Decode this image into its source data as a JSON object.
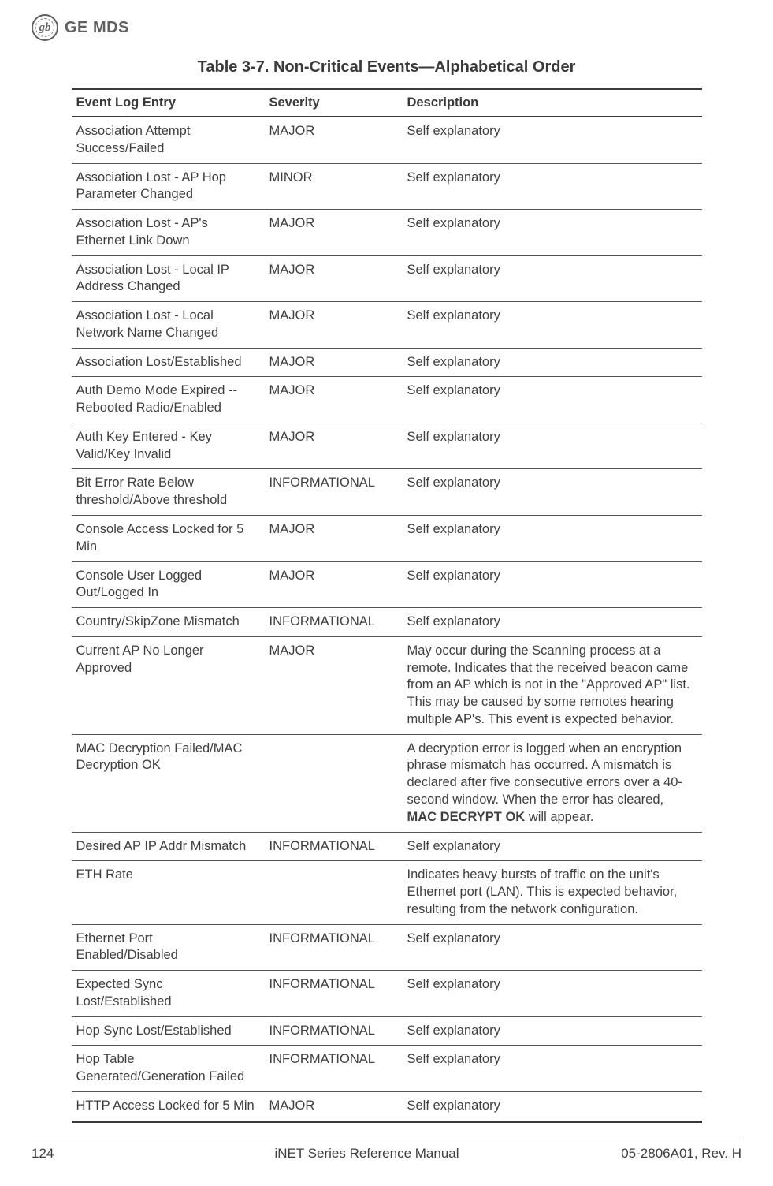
{
  "brand": {
    "logo_text": "gb",
    "name": "GE MDS"
  },
  "table": {
    "title": "Table 3-7. Non-Critical Events—Alphabetical Order",
    "columns": [
      "Event Log Entry",
      "Severity",
      "Description"
    ],
    "rows": [
      {
        "entry": "Association Attempt Success/Failed",
        "severity": "MAJOR",
        "desc": "Self explanatory"
      },
      {
        "entry": "Association Lost - AP Hop Parameter Changed",
        "severity": "MINOR",
        "desc": "Self explanatory"
      },
      {
        "entry": "Association Lost - AP's Ethernet Link Down",
        "severity": "MAJOR",
        "desc": "Self explanatory"
      },
      {
        "entry": "Association Lost - Local IP Address Changed",
        "severity": "MAJOR",
        "desc": "Self explanatory"
      },
      {
        "entry": "Association Lost - Local Network Name Changed",
        "severity": "MAJOR",
        "desc": "Self explanatory"
      },
      {
        "entry": "Association Lost/Established",
        "severity": "MAJOR",
        "desc": "Self explanatory"
      },
      {
        "entry": "Auth Demo Mode Expired -- Rebooted Radio/Enabled",
        "severity": "MAJOR",
        "desc": "Self explanatory"
      },
      {
        "entry": "Auth Key Entered - Key Valid/Key Invalid",
        "severity": "MAJOR",
        "desc": "Self explanatory"
      },
      {
        "entry": "Bit Error Rate Below threshold/Above threshold",
        "severity": "INFORMATIONAL",
        "desc": "Self explanatory"
      },
      {
        "entry": "Console Access Locked for 5 Min",
        "severity": "MAJOR",
        "desc": "Self explanatory"
      },
      {
        "entry": "Console User Logged Out/Logged In",
        "severity": "MAJOR",
        "desc": "Self explanatory"
      },
      {
        "entry": "Country/SkipZone Mismatch",
        "severity": "INFORMATIONAL",
        "desc": "Self explanatory"
      },
      {
        "entry": "Current AP No Longer Approved",
        "severity": "MAJOR",
        "desc": "May occur during the Scanning process at a remote. Indicates that the received beacon came from an AP which is not in the \"Approved AP\" list. This may be caused by some remotes hearing multiple AP's. This event is expected behavior."
      },
      {
        "entry": "MAC Decryption Failed/MAC Decryption OK",
        "severity": "",
        "desc_html": "A decryption error is logged when an encryption phrase mismatch has occurred. A mismatch is declared after five consecutive errors over a 40-second window. When the error has cleared, <strong>MAC DECRYPT OK</strong> will appear."
      },
      {
        "entry": "Desired AP IP Addr Mismatch",
        "severity": "INFORMATIONAL",
        "desc": "Self explanatory"
      },
      {
        "entry": "ETH Rate",
        "severity": "",
        "desc": "Indicates heavy bursts of traffic on the unit's Ethernet port (LAN). This is expected behavior, resulting from the network configuration."
      },
      {
        "entry": "Ethernet Port Enabled/Disabled",
        "severity": "INFORMATIONAL",
        "desc": "Self explanatory"
      },
      {
        "entry": "Expected Sync Lost/Established",
        "severity": "INFORMATIONAL",
        "desc": "Self explanatory"
      },
      {
        "entry": "Hop Sync Lost/Established",
        "severity": "INFORMATIONAL",
        "desc": "Self explanatory"
      },
      {
        "entry": "Hop Table Generated/Generation Failed",
        "severity": "INFORMATIONAL",
        "desc": "Self explanatory"
      },
      {
        "entry": "HTTP Access Locked for 5 Min",
        "severity": "MAJOR",
        "desc": "Self explanatory"
      }
    ]
  },
  "footer": {
    "page_num": "124",
    "center": "iNET Series Reference Manual",
    "right": "05-2806A01, Rev. H"
  }
}
